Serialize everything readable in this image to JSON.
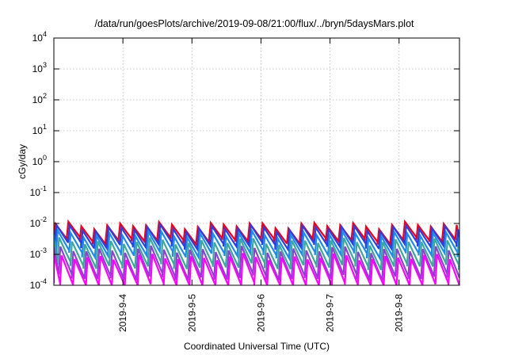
{
  "chart_data": {
    "type": "line",
    "title": "/data/run/goesPlots/archive/2019-09-08/21:00/flux/../bryn/5daysMars.plot",
    "xlabel": "Coordinated Universal Time (UTC)",
    "ylabel": "cGy/day",
    "y_scale": "log",
    "ylim": [
      0.0001,
      10000
    ],
    "xlim": [
      "2019-09-03 00:00",
      "2019-09-08 21:00"
    ],
    "grid": true,
    "legend": "none",
    "x_ticks": [
      "2019-9-4",
      "2019-9-5",
      "2019-9-6",
      "2019-9-7",
      "2019-9-8"
    ],
    "y_ticks": [
      {
        "base": "10",
        "exp": "-4"
      },
      {
        "base": "10",
        "exp": "-3"
      },
      {
        "base": "10",
        "exp": "-2"
      },
      {
        "base": "10",
        "exp": "-1"
      },
      {
        "base": "10",
        "exp": "0"
      },
      {
        "base": "10",
        "exp": "1"
      },
      {
        "base": "10",
        "exp": "2"
      },
      {
        "base": "10",
        "exp": "3"
      },
      {
        "base": "10",
        "exp": "4"
      }
    ],
    "series": [
      {
        "color": "#e8001c",
        "peak": 0.0088,
        "trough": 0.0028,
        "shift": 0.0
      },
      {
        "color": "#2a3fe0",
        "peak": 0.007,
        "trough": 0.0019,
        "shift": 0.1
      },
      {
        "color": "#1f8ae8",
        "peak": 0.0044,
        "trough": 0.001,
        "shift": 0.18
      },
      {
        "color": "#3ca89a",
        "peak": 0.0026,
        "trough": 0.00042,
        "shift": 0.28
      },
      {
        "color": "#8a44cc",
        "peak": 0.0014,
        "trough": 0.00018,
        "shift": 0.38
      },
      {
        "color": "#ff00ff",
        "peak": 0.0008,
        "trough": 9e-05,
        "shift": 0.48
      }
    ],
    "period_hours": 4.5
  }
}
